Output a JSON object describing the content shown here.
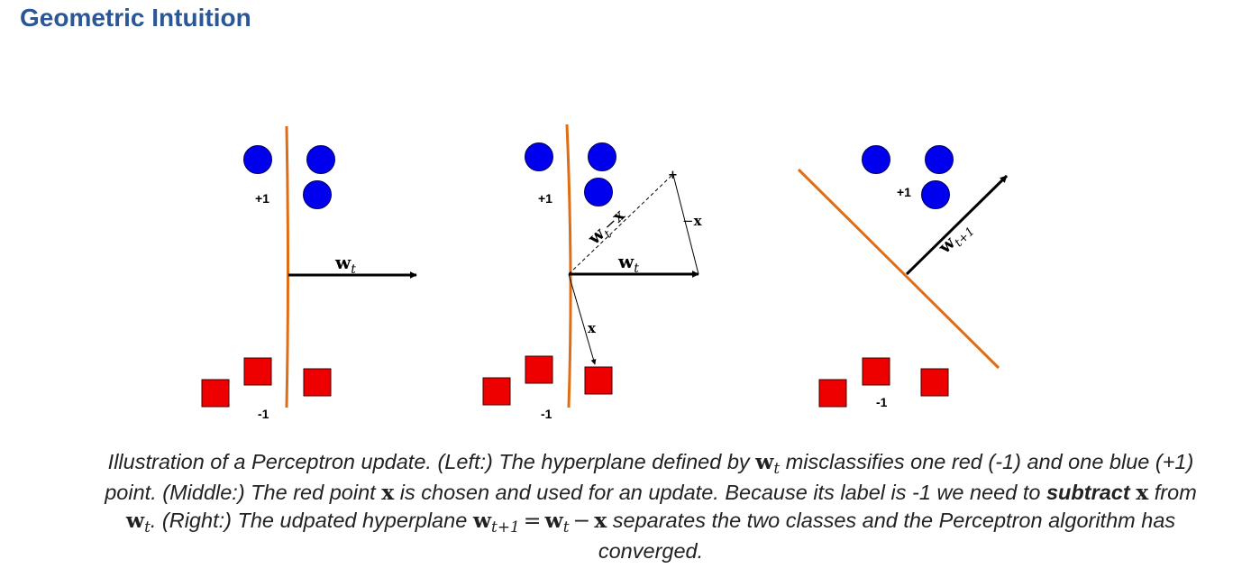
{
  "heading": "Geometric Intuition",
  "labels": {
    "plus_one": "+1",
    "minus_one": "-1",
    "w_bold": "w",
    "t_sub": "t",
    "t_plus_1_sub": "t+1",
    "x_bold": "x",
    "minus_sign": "−",
    "plus_sign": "+"
  },
  "caption": {
    "p1": "Illustration of a Perceptron update. (Left:) The hyperplane defined by ",
    "p2": " misclassifies one red (-1) and one blue (+1) point. (Middle:) The red point ",
    "p3": " is chosen and used for an update. Because its label is -1 we need to ",
    "subtract": "subtract",
    "p4": " from ",
    "p5": ". (Right:) The udpated hyperplane ",
    "eq": "=",
    "minus": "−",
    "p6": " separates the two classes and the Perceptron algorithm has converged."
  },
  "colors": {
    "heading": "#2b5797",
    "hyperplane": "#e06c14",
    "positive_point": "#0000ee",
    "negative_point": "#ee0000"
  }
}
